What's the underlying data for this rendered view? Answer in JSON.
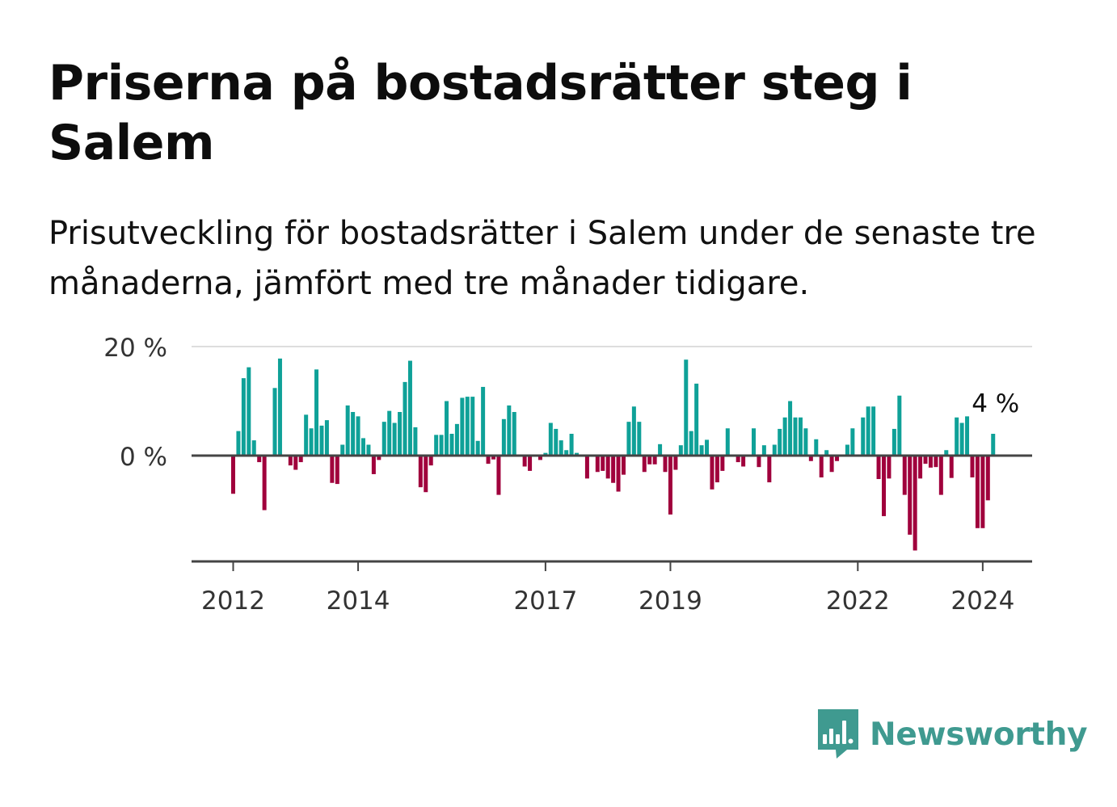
{
  "title": "Priserna på bostadsrätter steg i Salem",
  "subtitle": "Prisutveckling för bostadsrätter i Salem under de senaste tre månaderna, jämfört med tre månader tidigare.",
  "brand": {
    "name": "Newsworthy",
    "color": "#3f9a90",
    "icon": "chat-bubble-bar-chart-icon"
  },
  "colors": {
    "positive": "#0fa198",
    "negative": "#a0003c",
    "axis": "#444444",
    "grid": "#dddddd"
  },
  "chart_data": {
    "type": "bar",
    "unit": "%",
    "ylim": [
      -20,
      20
    ],
    "yticks": [
      {
        "value": 20,
        "label": "20 %"
      },
      {
        "value": 0,
        "label": "0 %"
      }
    ],
    "xticks": [
      {
        "date": "2012-01",
        "label": "2012"
      },
      {
        "date": "2014-01",
        "label": "2014"
      },
      {
        "date": "2017-01",
        "label": "2017"
      },
      {
        "date": "2019-01",
        "label": "2019"
      },
      {
        "date": "2022-01",
        "label": "2022"
      },
      {
        "date": "2024-01",
        "label": "2024"
      }
    ],
    "annotation": {
      "date": "2024-03",
      "value": 4,
      "label": "4 %"
    },
    "series": [
      {
        "values": [
          [
            "2012-01",
            -7
          ],
          [
            "2012-02",
            4.5
          ],
          [
            "2012-03",
            14.2
          ],
          [
            "2012-04",
            16.2
          ],
          [
            "2012-05",
            2.8
          ],
          [
            "2012-06",
            -1.2
          ],
          [
            "2012-07",
            -10
          ],
          [
            "2012-09",
            12.4
          ],
          [
            "2012-10",
            17.8
          ],
          [
            "2012-12",
            -1.8
          ],
          [
            "2013-01",
            -2.6
          ],
          [
            "2013-02",
            -1.2
          ],
          [
            "2013-03",
            7.5
          ],
          [
            "2013-04",
            5
          ],
          [
            "2013-05",
            15.8
          ],
          [
            "2013-06",
            5.5
          ],
          [
            "2013-07",
            6.5
          ],
          [
            "2013-08",
            -5
          ],
          [
            "2013-09",
            -5.2
          ],
          [
            "2013-10",
            2
          ],
          [
            "2013-11",
            9.2
          ],
          [
            "2013-12",
            8
          ],
          [
            "2014-01",
            7.2
          ],
          [
            "2014-02",
            3.2
          ],
          [
            "2014-03",
            2
          ],
          [
            "2014-04",
            -3.4
          ],
          [
            "2014-05",
            -0.8
          ],
          [
            "2014-06",
            6.2
          ],
          [
            "2014-07",
            8.2
          ],
          [
            "2014-08",
            6
          ],
          [
            "2014-09",
            8
          ],
          [
            "2014-10",
            13.5
          ],
          [
            "2014-11",
            17.4
          ],
          [
            "2014-12",
            5.2
          ],
          [
            "2015-01",
            -5.8
          ],
          [
            "2015-02",
            -6.7
          ],
          [
            "2015-03",
            -1.8
          ],
          [
            "2015-04",
            3.8
          ],
          [
            "2015-05",
            3.8
          ],
          [
            "2015-06",
            10
          ],
          [
            "2015-07",
            4
          ],
          [
            "2015-08",
            5.8
          ],
          [
            "2015-09",
            10.6
          ],
          [
            "2015-10",
            10.8
          ],
          [
            "2015-11",
            10.8
          ],
          [
            "2015-12",
            2.7
          ],
          [
            "2016-01",
            12.6
          ],
          [
            "2016-02",
            -1.5
          ],
          [
            "2016-03",
            -0.7
          ],
          [
            "2016-04",
            -7.2
          ],
          [
            "2016-05",
            6.7
          ],
          [
            "2016-06",
            9.2
          ],
          [
            "2016-07",
            8
          ],
          [
            "2016-09",
            -2
          ],
          [
            "2016-10",
            -2.8
          ],
          [
            "2016-12",
            -0.8
          ],
          [
            "2017-01",
            0.5
          ],
          [
            "2017-02",
            6
          ],
          [
            "2017-03",
            4.9
          ],
          [
            "2017-04",
            2.8
          ],
          [
            "2017-05",
            1
          ],
          [
            "2017-06",
            4
          ],
          [
            "2017-07",
            0.5
          ],
          [
            "2017-09",
            -4.2
          ],
          [
            "2017-11",
            -3
          ],
          [
            "2017-12",
            -2.8
          ],
          [
            "2018-01",
            -4.2
          ],
          [
            "2018-02",
            -5
          ],
          [
            "2018-03",
            -6.6
          ],
          [
            "2018-04",
            -3.5
          ],
          [
            "2018-05",
            6.2
          ],
          [
            "2018-06",
            9
          ],
          [
            "2018-07",
            6.2
          ],
          [
            "2018-08",
            -3
          ],
          [
            "2018-09",
            -1.6
          ],
          [
            "2018-10",
            -1.6
          ],
          [
            "2018-11",
            2.1
          ],
          [
            "2018-12",
            -3
          ],
          [
            "2019-01",
            -10.8
          ],
          [
            "2019-02",
            -2.6
          ],
          [
            "2019-03",
            1.9
          ],
          [
            "2019-04",
            17.6
          ],
          [
            "2019-05",
            4.5
          ],
          [
            "2019-06",
            13.2
          ],
          [
            "2019-07",
            1.9
          ],
          [
            "2019-08",
            2.9
          ],
          [
            "2019-09",
            -6.2
          ],
          [
            "2019-10",
            -4.9
          ],
          [
            "2019-11",
            -2.8
          ],
          [
            "2019-12",
            5
          ],
          [
            "2020-02",
            -1.2
          ],
          [
            "2020-03",
            -2
          ],
          [
            "2020-05",
            5
          ],
          [
            "2020-06",
            -2.1
          ],
          [
            "2020-07",
            1.9
          ],
          [
            "2020-08",
            -4.9
          ],
          [
            "2020-09",
            2
          ],
          [
            "2020-10",
            4.9
          ],
          [
            "2020-11",
            7
          ],
          [
            "2020-12",
            10
          ],
          [
            "2021-01",
            7
          ],
          [
            "2021-02",
            7
          ],
          [
            "2021-03",
            5
          ],
          [
            "2021-04",
            -1
          ],
          [
            "2021-05",
            3
          ],
          [
            "2021-06",
            -4
          ],
          [
            "2021-07",
            1
          ],
          [
            "2021-08",
            -3
          ],
          [
            "2021-09",
            -1
          ],
          [
            "2021-11",
            2
          ],
          [
            "2021-12",
            5
          ],
          [
            "2022-02",
            7
          ],
          [
            "2022-03",
            9
          ],
          [
            "2022-04",
            9
          ],
          [
            "2022-05",
            -4.3
          ],
          [
            "2022-06",
            -11.1
          ],
          [
            "2022-07",
            -4.2
          ],
          [
            "2022-08",
            4.9
          ],
          [
            "2022-09",
            11
          ],
          [
            "2022-10",
            -7.2
          ],
          [
            "2022-11",
            -14.5
          ],
          [
            "2022-12",
            -17.4
          ],
          [
            "2023-01",
            -4.2
          ],
          [
            "2023-02",
            -1.5
          ],
          [
            "2023-03",
            -2.2
          ],
          [
            "2023-04",
            -2.1
          ],
          [
            "2023-05",
            -7.2
          ],
          [
            "2023-06",
            1
          ],
          [
            "2023-07",
            -4.1
          ],
          [
            "2023-08",
            7
          ],
          [
            "2023-09",
            6
          ],
          [
            "2023-10",
            7.2
          ],
          [
            "2023-11",
            -4
          ],
          [
            "2023-12",
            -13.3
          ],
          [
            "2024-01",
            -13.3
          ],
          [
            "2024-02",
            -8.2
          ],
          [
            "2024-03",
            4
          ]
        ]
      }
    ]
  }
}
